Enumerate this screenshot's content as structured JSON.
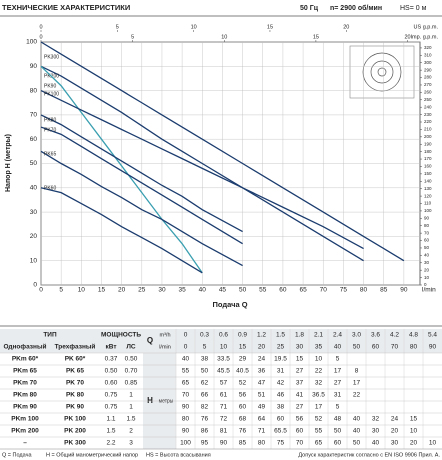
{
  "header": {
    "title": "ТЕХНИЧЕСКИЕ ХАРАКТЕРИСТИКИ",
    "freq": "50 Гц",
    "speed": "n= 2900 об/мин",
    "hs": "HS= 0 м"
  },
  "chart": {
    "type": "line",
    "y_label": "Напор H (метры)",
    "x_label": "Подача Q",
    "x_unit": "l/min",
    "us_label": "US g.p.m.",
    "imp_label": "Imp. g.p.m.",
    "x": [
      0,
      5,
      10,
      15,
      20,
      25,
      30,
      35,
      40,
      50,
      60,
      70,
      80,
      90
    ],
    "xlim": [
      0,
      94
    ],
    "xticks": [
      0,
      5,
      10,
      15,
      20,
      25,
      30,
      35,
      40,
      45,
      50,
      55,
      60,
      65,
      70,
      75,
      80,
      85,
      90
    ],
    "ylim": [
      0,
      100
    ],
    "yticks": [
      0,
      10,
      20,
      30,
      40,
      50,
      60,
      70,
      80,
      90,
      100
    ],
    "y2lim": [
      0,
      328
    ],
    "y2ticks": [
      0,
      10,
      20,
      30,
      40,
      50,
      60,
      70,
      80,
      90,
      100,
      110,
      120,
      130,
      140,
      150,
      160,
      170,
      180,
      190,
      200,
      210,
      220,
      230,
      240,
      250,
      260,
      270,
      280,
      290,
      300,
      310,
      320
    ],
    "uslim": [
      0,
      24.83
    ],
    "usticks": [
      0,
      5,
      10,
      15,
      20
    ],
    "implim": [
      0,
      20.68
    ],
    "impticks": [
      0,
      5,
      10,
      15,
      20
    ],
    "grid": true,
    "series": [
      {
        "name": "PK300",
        "color": "#1b3c6e",
        "values": [
          100,
          95,
          90,
          85,
          80,
          75,
          70,
          65,
          60,
          50,
          40,
          30,
          20,
          10
        ]
      },
      {
        "name": "PK200",
        "color": "#1b3c6e",
        "values": [
          90,
          86,
          81,
          76,
          71,
          65.5,
          60,
          55,
          50,
          40,
          30,
          20,
          10,
          null
        ]
      },
      {
        "name": "PK90",
        "color": "#3a9fb0",
        "values": [
          90,
          82,
          71,
          60,
          49,
          38,
          27,
          17,
          5,
          null,
          null,
          null,
          null,
          null
        ]
      },
      {
        "name": "PK100",
        "color": "#1b3c6e",
        "values": [
          80,
          76,
          72,
          68,
          64,
          60,
          56,
          52,
          48,
          40,
          32,
          24,
          15,
          null
        ]
      },
      {
        "name": "PK80",
        "color": "#1b3c6e",
        "values": [
          70,
          66,
          61,
          56,
          51,
          46,
          41,
          36.5,
          31,
          22,
          null,
          null,
          null,
          null
        ]
      },
      {
        "name": "PK70",
        "color": "#1b3c6e",
        "values": [
          65,
          62,
          57,
          52,
          47,
          42,
          37,
          32,
          27,
          17,
          null,
          null,
          null,
          null
        ]
      },
      {
        "name": "PK65",
        "color": "#1b3c6e",
        "values": [
          55,
          50,
          45.5,
          40.5,
          36,
          31,
          27,
          22,
          17,
          8,
          null,
          null,
          null,
          null
        ]
      },
      {
        "name": "PK60",
        "color": "#1b3c6e",
        "values": [
          40,
          38,
          33.5,
          29,
          24,
          19.5,
          15,
          10,
          5,
          null,
          null,
          null,
          null,
          null
        ]
      }
    ]
  },
  "table": {
    "type_head": "ТИП",
    "power_head": "МОЩНОСТЬ",
    "single": "Однофазный",
    "three": "Трехфазный",
    "kw": "кВт",
    "hp": "ЛС",
    "q": "Q",
    "m3h": "m³/h",
    "lmin": "l/min",
    "h": "H",
    "h_unit": "метры",
    "q_m3h": [
      "0",
      "0.3",
      "0.6",
      "0.9",
      "1.2",
      "1.5",
      "1.8",
      "2.1",
      "2.4",
      "3.0",
      "3.6",
      "4.2",
      "4.8",
      "5.4"
    ],
    "q_lmin": [
      0,
      5,
      10,
      15,
      20,
      25,
      30,
      35,
      40,
      50,
      60,
      70,
      80,
      90
    ],
    "rows": [
      {
        "single": "PKm 60*",
        "three": "PK 60*",
        "kw": "0.37",
        "hp": "0.50",
        "h": [
          40,
          38,
          33.5,
          29,
          24,
          19.5,
          15,
          10,
          5
        ]
      },
      {
        "single": "PKm 65",
        "three": "PK 65",
        "kw": "0.50",
        "hp": "0.70",
        "h": [
          55,
          50,
          45.5,
          40.5,
          36,
          31,
          27,
          22,
          17,
          8
        ]
      },
      {
        "single": "PKm 70",
        "three": "PK 70",
        "kw": "0.60",
        "hp": "0.85",
        "h": [
          65,
          62,
          57,
          52,
          47,
          42,
          37,
          32,
          27,
          17
        ]
      },
      {
        "single": "PKm 80",
        "three": "PK 80",
        "kw": "0.75",
        "hp": "1",
        "h": [
          70,
          66,
          61,
          56,
          51,
          46,
          41,
          36.5,
          31,
          22
        ]
      },
      {
        "single": "PKm 90",
        "three": "PK 90",
        "kw": "0.75",
        "hp": "1",
        "h": [
          90,
          82,
          71,
          60,
          49,
          38,
          27,
          17,
          5
        ]
      },
      {
        "single": "PKm 100",
        "three": "PK 100",
        "kw": "1.1",
        "hp": "1.5",
        "h": [
          80,
          76,
          72,
          68,
          64,
          60,
          56,
          52,
          48,
          40,
          32,
          24,
          15
        ]
      },
      {
        "single": "PKm 200",
        "three": "PK 200",
        "kw": "1.5",
        "hp": "2",
        "h": [
          90,
          86,
          81,
          76,
          71,
          65.5,
          60,
          55,
          50,
          40,
          30,
          20,
          10
        ]
      },
      {
        "single": "–",
        "three": "PK 300",
        "kw": "2.2",
        "hp": "3",
        "h": [
          100,
          95,
          90,
          85,
          80,
          75,
          70,
          65,
          60,
          50,
          40,
          30,
          20,
          10
        ]
      }
    ]
  },
  "footer": {
    "items": [
      "Q = Подача",
      "H = Общий манометрический напор",
      "HS = Высота всасывания"
    ],
    "note": "Допуск характеристик согласно с EN ISO 9906 Прил. A."
  }
}
